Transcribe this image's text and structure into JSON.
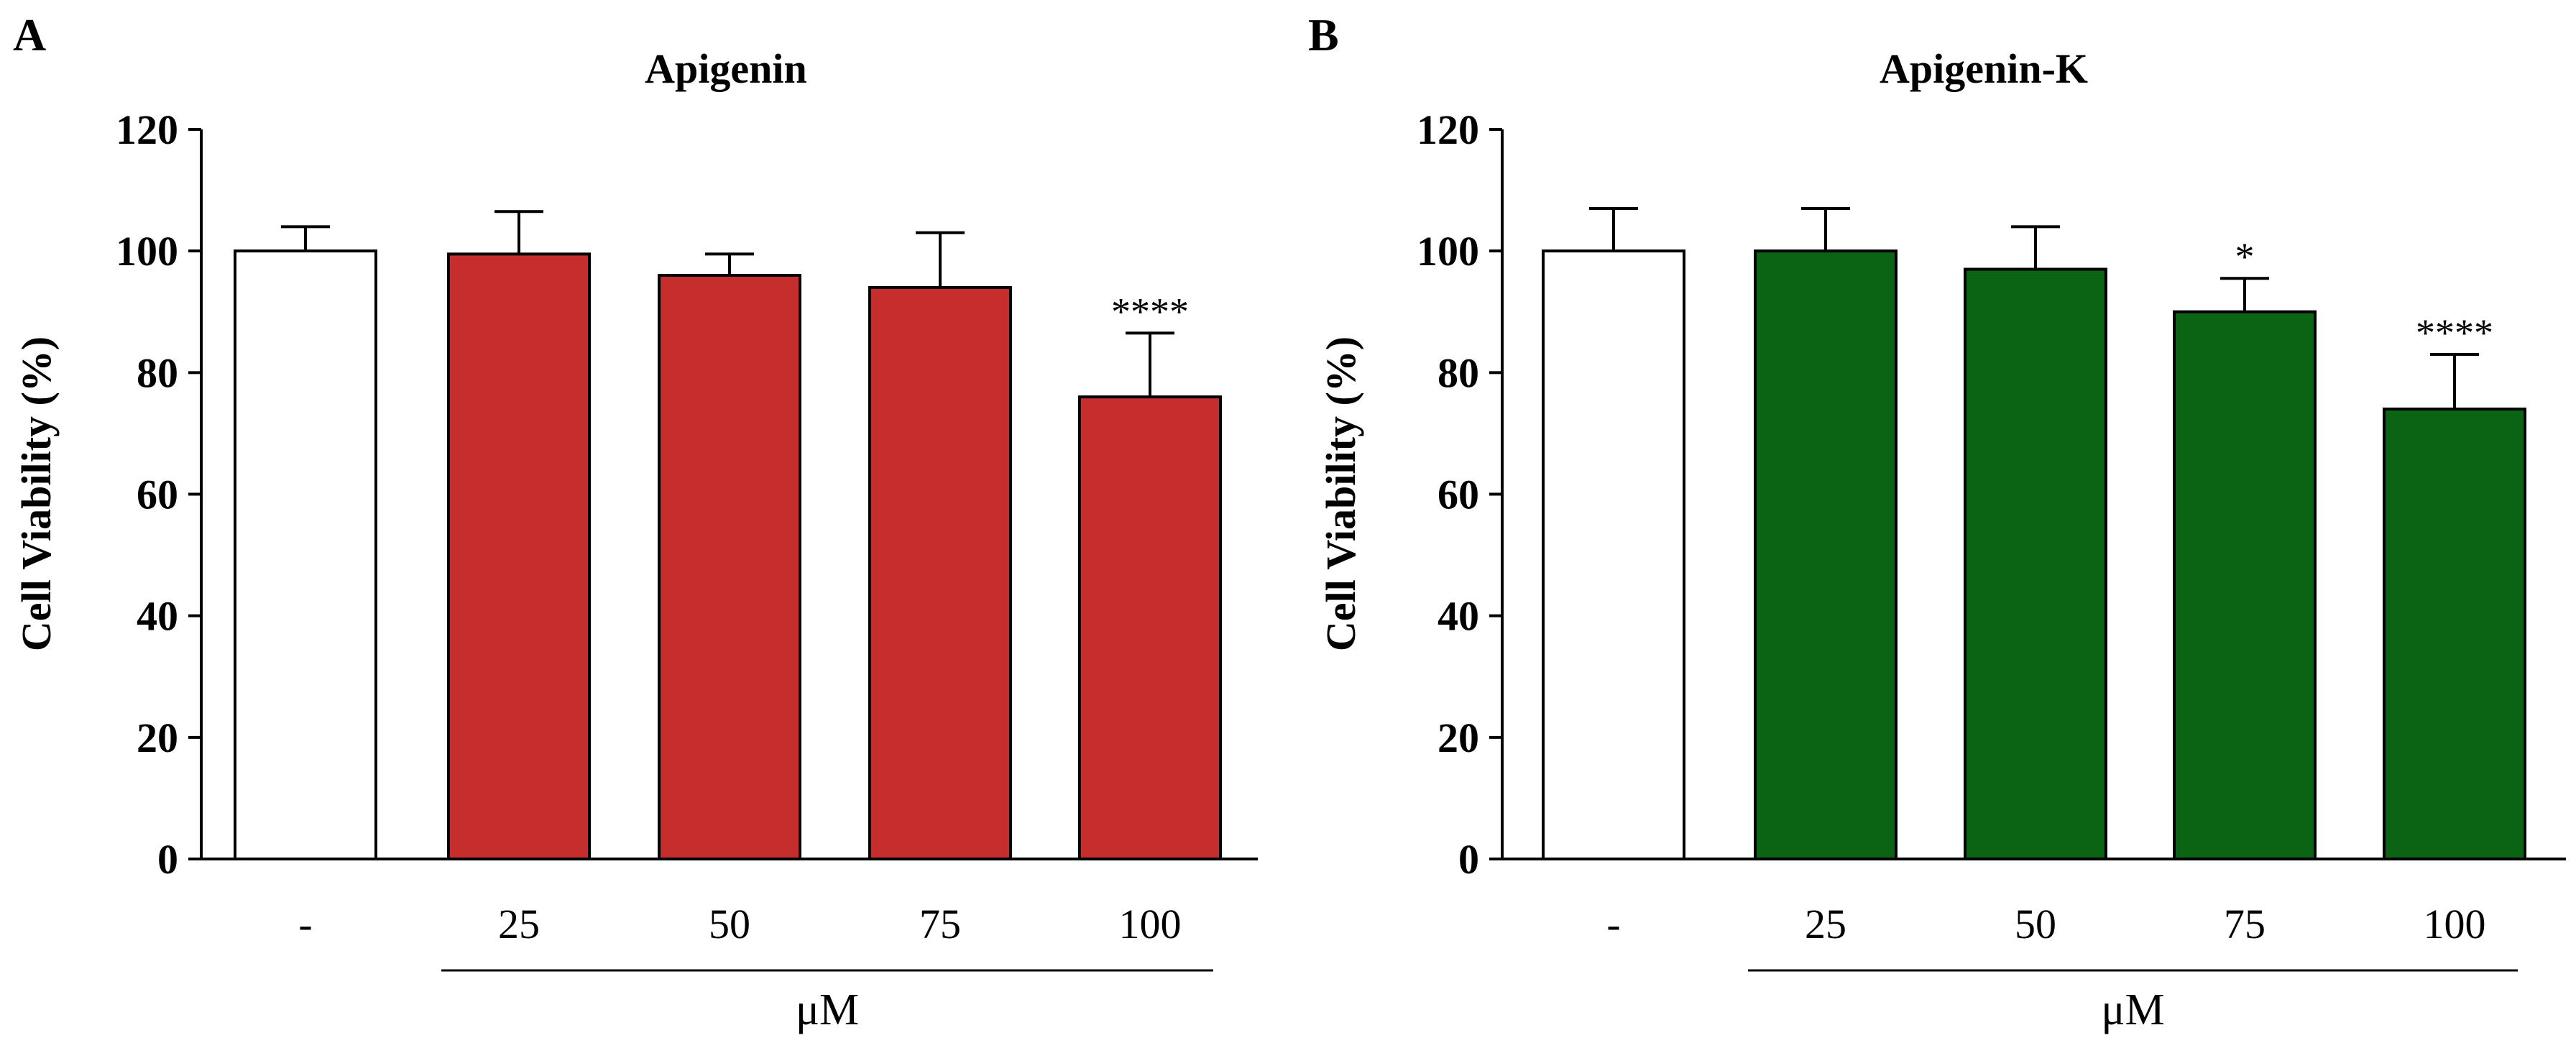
{
  "chart_data": [
    {
      "panel": "A",
      "type": "bar",
      "title": "Apigenin",
      "ylabel": "Cell Viability (%)",
      "xlabel": "μM",
      "ylim": [
        0,
        120
      ],
      "yticks": [
        0,
        20,
        40,
        60,
        80,
        100,
        120
      ],
      "categories": [
        "-",
        "25",
        "50",
        "75",
        "100"
      ],
      "values": [
        100,
        99.5,
        96,
        94,
        76
      ],
      "errors": [
        4,
        7,
        3.5,
        9,
        10.5
      ],
      "significance": [
        "",
        "",
        "",
        "",
        "****"
      ],
      "bar_colors": [
        "#ffffff",
        "#c62d2d",
        "#c62d2d",
        "#c62d2d",
        "#c62d2d"
      ],
      "unit_line_categories": [
        "25",
        "100"
      ]
    },
    {
      "panel": "B",
      "type": "bar",
      "title": "Apigenin-K",
      "ylabel": "Cell Viability (%)",
      "xlabel": "μM",
      "ylim": [
        0,
        120
      ],
      "yticks": [
        0,
        20,
        40,
        60,
        80,
        100,
        120
      ],
      "categories": [
        "-",
        "25",
        "50",
        "75",
        "100"
      ],
      "values": [
        100,
        100,
        97,
        90,
        74
      ],
      "errors": [
        7,
        7,
        7,
        5.5,
        9
      ],
      "significance": [
        "",
        "",
        "",
        "*",
        "****"
      ],
      "bar_colors": [
        "#ffffff",
        "#0a6413",
        "#0a6413",
        "#0a6413",
        "#0a6413"
      ],
      "unit_line_categories": [
        "25",
        "100"
      ]
    }
  ]
}
